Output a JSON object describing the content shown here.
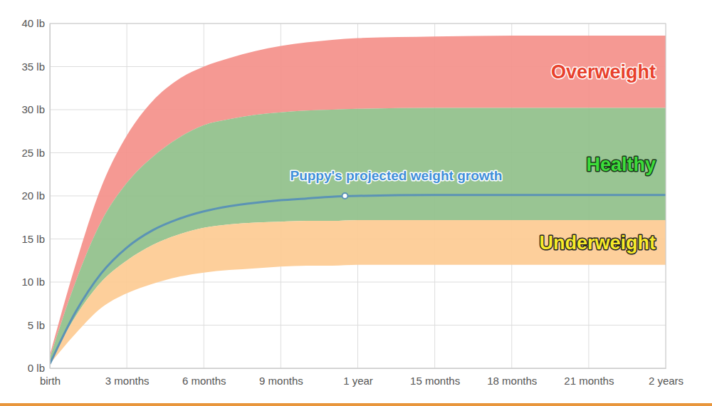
{
  "chart_data": {
    "type": "area",
    "x": [
      0,
      1,
      2,
      3,
      4,
      5,
      6,
      7,
      8,
      9,
      10,
      11,
      12,
      15,
      18,
      21,
      24
    ],
    "xlim": [
      0,
      24
    ],
    "xticks": [
      {
        "value": 0,
        "label": "birth"
      },
      {
        "value": 3,
        "label": "3 months"
      },
      {
        "value": 6,
        "label": "6 months"
      },
      {
        "value": 9,
        "label": "9 months"
      },
      {
        "value": 12,
        "label": "1 year"
      },
      {
        "value": 15,
        "label": "15 months"
      },
      {
        "value": 18,
        "label": "18 months"
      },
      {
        "value": 21,
        "label": "21 months"
      },
      {
        "value": 24,
        "label": "2 years"
      }
    ],
    "ylim": [
      0,
      40
    ],
    "yticks": [
      {
        "value": 0,
        "label": "0 lb"
      },
      {
        "value": 5,
        "label": "5 lb"
      },
      {
        "value": 10,
        "label": "10 lb"
      },
      {
        "value": 15,
        "label": "15 lb"
      },
      {
        "value": 20,
        "label": "20 lb"
      },
      {
        "value": 25,
        "label": "25 lb"
      },
      {
        "value": 30,
        "label": "30 lb"
      },
      {
        "value": 35,
        "label": "35 lb"
      },
      {
        "value": 40,
        "label": "40 lb"
      }
    ],
    "grid": true,
    "series": [
      {
        "name": "Overweight",
        "type": "area",
        "color": "#f4908a",
        "values": [
          1.5,
          12,
          21,
          27,
          31,
          33.5,
          35,
          36,
          36.8,
          37.4,
          37.8,
          38.1,
          38.3,
          38.5,
          38.6,
          38.6,
          38.6
        ],
        "lower": [
          1.2,
          10,
          17,
          21.5,
          24.5,
          26.7,
          28.2,
          28.9,
          29.4,
          29.7,
          29.9,
          30,
          30.1,
          30.2,
          30.2,
          30.2,
          30.2
        ]
      },
      {
        "name": "Healthy",
        "type": "area",
        "color": "#90c08a",
        "values": [
          1.2,
          10,
          17,
          21.5,
          24.5,
          26.7,
          28.2,
          28.9,
          29.4,
          29.7,
          29.9,
          30,
          30.1,
          30.2,
          30.2,
          30.2,
          30.2
        ],
        "lower": [
          0.7,
          6,
          10,
          12.5,
          14.3,
          15.5,
          16.3,
          16.7,
          16.9,
          17,
          17.1,
          17.1,
          17.2,
          17.2,
          17.2,
          17.2,
          17.2
        ]
      },
      {
        "name": "Underweight",
        "type": "area",
        "color": "#fdcb92",
        "values": [
          0.7,
          6,
          10,
          12.5,
          14.3,
          15.5,
          16.3,
          16.7,
          16.9,
          17,
          17.1,
          17.1,
          17.2,
          17.2,
          17.2,
          17.2,
          17.2
        ],
        "lower": [
          0.5,
          4,
          7,
          8.7,
          9.8,
          10.6,
          11.1,
          11.4,
          11.6,
          11.8,
          11.9,
          11.9,
          12,
          12,
          12,
          12,
          12
        ]
      },
      {
        "type": "line",
        "color": "#5b93b5",
        "values": [
          0.5,
          6.5,
          11,
          14,
          16,
          17.3,
          18.2,
          18.8,
          19.2,
          19.5,
          19.7,
          19.9,
          20,
          20.1,
          20.1,
          20.1,
          20.1
        ]
      }
    ],
    "annotations": [
      {
        "text": "Puppy's projected weight growth",
        "x": 11.5,
        "y": 20
      }
    ]
  }
}
